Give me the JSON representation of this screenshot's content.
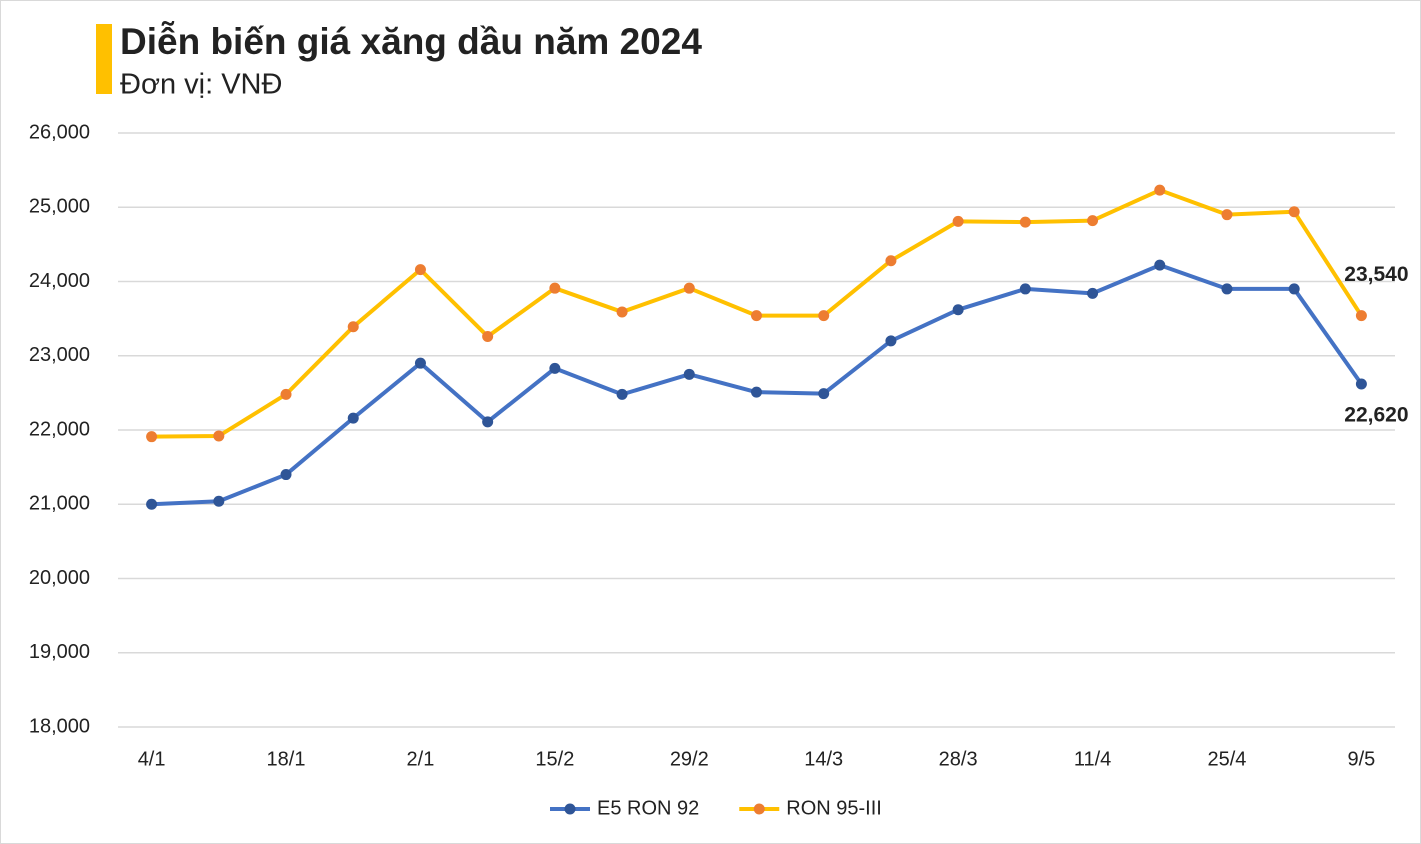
{
  "chart_data": {
    "type": "line",
    "title": "Diễn biến giá xăng dầu năm 2024",
    "subtitle": "Đơn vị: VNĐ",
    "categories": [
      "4/1",
      null,
      "18/1",
      null,
      "2/1",
      null,
      "15/2",
      null,
      "29/2",
      null,
      "14/3",
      null,
      "28/3",
      null,
      "11/4",
      null,
      "25/4",
      null,
      "9/5"
    ],
    "series": [
      {
        "name": "E5 RON 92",
        "color": "#4472c4",
        "marker_color": "#2f5597",
        "values": [
          21000,
          21040,
          21400,
          22160,
          22900,
          22110,
          22830,
          22480,
          22750,
          22510,
          22490,
          23200,
          23620,
          23900,
          23840,
          24220,
          23900,
          23900,
          22620
        ],
        "value_labels": [
          null,
          null,
          null,
          null,
          null,
          null,
          null,
          null,
          null,
          null,
          null,
          null,
          null,
          null,
          null,
          null,
          null,
          null,
          "22,620"
        ]
      },
      {
        "name": "RON 95-III",
        "color": "#ffc000",
        "marker_color": "#ed7d31",
        "values": [
          21910,
          21920,
          22480,
          23390,
          24160,
          23260,
          23910,
          23590,
          23910,
          23540,
          23540,
          24280,
          24810,
          24800,
          24820,
          25230,
          24900,
          24940,
          23540
        ],
        "value_labels": [
          null,
          null,
          null,
          null,
          null,
          null,
          null,
          null,
          null,
          null,
          null,
          null,
          null,
          null,
          null,
          null,
          null,
          null,
          "23,540"
        ]
      }
    ],
    "ylim": [
      18000,
      26000
    ],
    "yticks": [
      {
        "value": 18000,
        "label": "18,000"
      },
      {
        "value": 19000,
        "label": "19,000"
      },
      {
        "value": 20000,
        "label": "20,000"
      },
      {
        "value": 21000,
        "label": "21,000"
      },
      {
        "value": 22000,
        "label": "22,000"
      },
      {
        "value": 23000,
        "label": "23,000"
      },
      {
        "value": 24000,
        "label": "24,000"
      },
      {
        "value": 25000,
        "label": "25,000"
      },
      {
        "value": 26000,
        "label": "26,000"
      }
    ],
    "grid": true,
    "legend": "bottom"
  }
}
